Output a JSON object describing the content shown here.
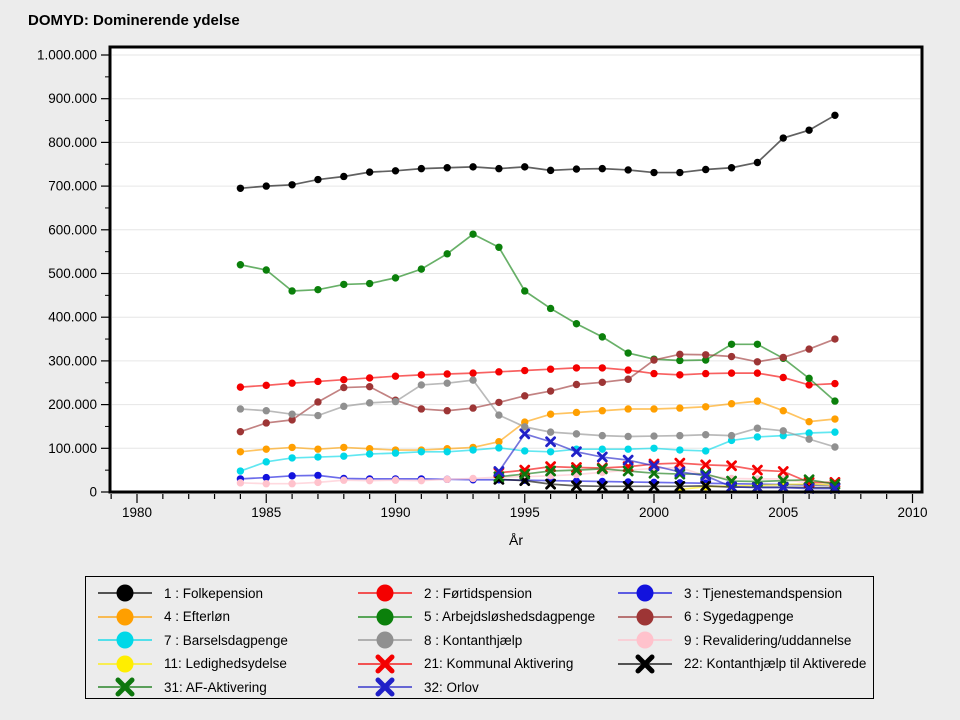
{
  "page": {
    "background": "#ececec",
    "plot_background": "#ffffff"
  },
  "chart_data": {
    "type": "line",
    "title": "DOMYD: Dominerende ydelse",
    "xlabel": "År",
    "grid": "horizontal",
    "legend_position": "bottom",
    "xlim": [
      1979,
      2010.4
    ],
    "ylim": [
      0,
      1018000
    ],
    "x_ticks": [
      {
        "v": 1980,
        "label": "1980"
      },
      {
        "v": 1985,
        "label": "1985"
      },
      {
        "v": 1990,
        "label": "1990"
      },
      {
        "v": 1995,
        "label": "1995"
      },
      {
        "v": 2000,
        "label": "2000"
      },
      {
        "v": 2005,
        "label": "2005"
      },
      {
        "v": 2010,
        "label": "2010"
      }
    ],
    "y_ticks": [
      {
        "v": 0,
        "label": "0"
      },
      {
        "v": 100000,
        "label": "100.000"
      },
      {
        "v": 200000,
        "label": "200.000"
      },
      {
        "v": 300000,
        "label": "300.000"
      },
      {
        "v": 400000,
        "label": "400.000"
      },
      {
        "v": 500000,
        "label": "500.000"
      },
      {
        "v": 600000,
        "label": "600.000"
      },
      {
        "v": 700000,
        "label": "700.000"
      },
      {
        "v": 800000,
        "label": "800.000"
      },
      {
        "v": 900000,
        "label": "900.000"
      },
      {
        "v": 1000000,
        "label": "1.000.000"
      }
    ],
    "years": [
      1984,
      1985,
      1986,
      1987,
      1988,
      1989,
      1990,
      1991,
      1992,
      1993,
      1994,
      1995,
      1996,
      1997,
      1998,
      1999,
      2000,
      2001,
      2002,
      2003,
      2004,
      2005,
      2006,
      2007
    ],
    "series": [
      {
        "id": "1",
        "label": "1 : Folkepension",
        "color": "#000000",
        "marker": "circle",
        "values": [
          695000,
          700000,
          703000,
          715000,
          722000,
          732000,
          735000,
          740000,
          742000,
          744000,
          740000,
          744000,
          736000,
          739000,
          740000,
          737000,
          731000,
          731000,
          738000,
          742000,
          754000,
          810000,
          828000,
          862000
        ]
      },
      {
        "id": "2",
        "label": "2 : Førtidspension",
        "color": "#f40000",
        "marker": "circle",
        "values": [
          240000,
          244000,
          249000,
          253000,
          257000,
          261000,
          265000,
          268000,
          270000,
          272000,
          275000,
          278000,
          281000,
          284000,
          284000,
          279000,
          271000,
          268000,
          271000,
          272000,
          272000,
          262000,
          245000,
          248000
        ]
      },
      {
        "id": "3",
        "label": "3 : Tjenestemandspension",
        "color": "#1212dd",
        "marker": "circle",
        "values": [
          30000,
          33000,
          37000,
          38000,
          31000,
          30000,
          30000,
          30000,
          29000,
          28000,
          28000,
          27000,
          26000,
          25000,
          24000,
          23000,
          22000,
          21000,
          20000,
          19000,
          18000,
          17000,
          16000,
          15000
        ]
      },
      {
        "id": "4",
        "label": "4 : Efterløn",
        "color": "#ff9f00",
        "marker": "circle",
        "values": [
          92000,
          98000,
          102000,
          98000,
          102000,
          99000,
          96000,
          96000,
          99000,
          102000,
          115000,
          160000,
          178000,
          182000,
          186000,
          190000,
          190000,
          192000,
          195000,
          202000,
          208000,
          186000,
          161000,
          167000
        ]
      },
      {
        "id": "5",
        "label": "5 : Arbejdsløshedsdagpenge",
        "color": "#0b800b",
        "marker": "circle",
        "values": [
          520000,
          508000,
          460000,
          463000,
          475000,
          477000,
          490000,
          510000,
          545000,
          590000,
          560000,
          460000,
          420000,
          385000,
          355000,
          318000,
          304000,
          301000,
          302000,
          338000,
          338000,
          306000,
          260000,
          208000
        ]
      },
      {
        "id": "6",
        "label": "6 : Sygedagpenge",
        "color": "#9d3535",
        "marker": "circle",
        "values": [
          138000,
          158000,
          165000,
          206000,
          239000,
          241000,
          210000,
          190000,
          186000,
          192000,
          205000,
          220000,
          231000,
          246000,
          251000,
          258000,
          302000,
          315000,
          314000,
          310000,
          298000,
          308000,
          327000,
          350000
        ]
      },
      {
        "id": "7",
        "label": "7 : Barselsdagpenge",
        "color": "#00d8e8",
        "marker": "circle",
        "values": [
          48000,
          69000,
          78000,
          80000,
          82000,
          87000,
          89000,
          92000,
          92000,
          96000,
          101000,
          94000,
          92000,
          98000,
          98000,
          98000,
          100000,
          96000,
          94000,
          118000,
          126000,
          129000,
          135000,
          137000
        ]
      },
      {
        "id": "8",
        "label": "8 : Kontanthjælp",
        "color": "#909090",
        "marker": "circle",
        "values": [
          190000,
          186000,
          178000,
          175000,
          196000,
          204000,
          207000,
          245000,
          249000,
          256000,
          176000,
          149000,
          137000,
          133000,
          129000,
          127000,
          128000,
          129000,
          131000,
          129000,
          146000,
          140000,
          121000,
          103000
        ]
      },
      {
        "id": "9",
        "label": "9 : Revalidering/uddannelse",
        "color": "#ffc2cc",
        "marker": "circle",
        "values": [
          21000,
          19000,
          19000,
          22000,
          27000,
          26000,
          27000,
          26000,
          29000,
          31000,
          34000,
          35000,
          37000,
          40000,
          45000,
          50000,
          54000,
          56000,
          37000,
          31000,
          30000,
          30000,
          20000,
          15000
        ]
      },
      {
        "id": "11",
        "label": "11: Ledighedsydelse",
        "color": "#ffee00",
        "marker": "circle",
        "values": [
          null,
          null,
          null,
          null,
          null,
          null,
          null,
          null,
          null,
          null,
          null,
          null,
          null,
          null,
          null,
          null,
          null,
          6000,
          12000,
          14000,
          15000,
          17000,
          18000,
          16000
        ]
      },
      {
        "id": "21",
        "label": "21: Kommunal Aktivering",
        "color": "#f40000",
        "marker": "x",
        "values": [
          null,
          null,
          null,
          null,
          null,
          null,
          null,
          null,
          null,
          null,
          44000,
          50000,
          58000,
          56000,
          55000,
          58000,
          64000,
          66000,
          62000,
          60000,
          50000,
          47000,
          22000,
          22000
        ]
      },
      {
        "id": "22",
        "label": "22: Kontanthjælp til Aktiverede",
        "color": "#000000",
        "marker": "x",
        "values": [
          null,
          null,
          null,
          null,
          null,
          null,
          null,
          null,
          null,
          null,
          29000,
          26000,
          18000,
          14000,
          13000,
          13000,
          13000,
          13000,
          14000,
          11000,
          11000,
          11000,
          10000,
          10000
        ]
      },
      {
        "id": "31",
        "label": "31: AF-Aktivering",
        "color": "#0e770e",
        "marker": "x",
        "values": [
          null,
          null,
          null,
          null,
          null,
          null,
          null,
          null,
          null,
          null,
          35000,
          41000,
          48000,
          50000,
          53000,
          48000,
          43000,
          41000,
          41000,
          25000,
          24000,
          26000,
          28000,
          18000
        ]
      },
      {
        "id": "32",
        "label": "32: Orlov",
        "color": "#2121c8",
        "marker": "x",
        "values": [
          null,
          null,
          null,
          null,
          null,
          null,
          null,
          null,
          null,
          null,
          47000,
          133000,
          115000,
          92000,
          80000,
          73000,
          60000,
          46000,
          37000,
          12000,
          10000,
          10000,
          8000,
          8000
        ]
      }
    ]
  }
}
